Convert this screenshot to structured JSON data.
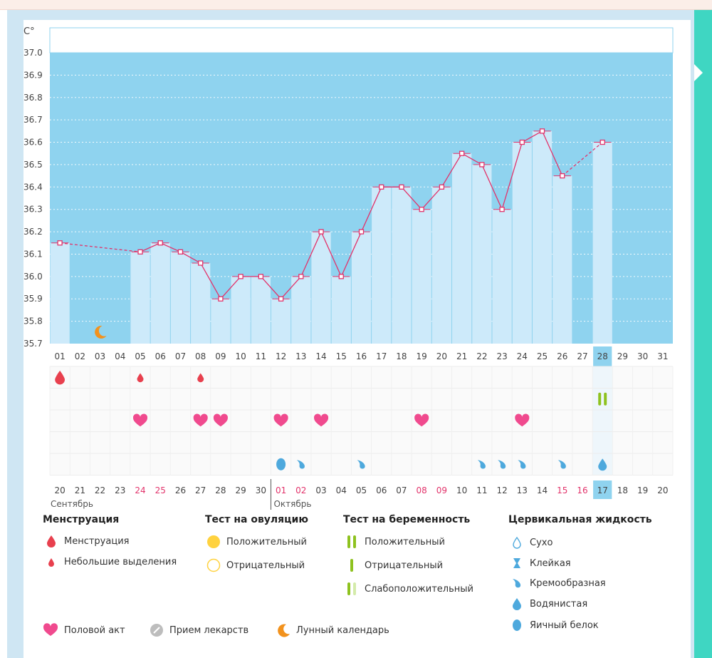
{
  "chart_data": {
    "type": "line",
    "yunit": "C°",
    "yticks": [
      "35.7",
      "35.8",
      "35.9",
      "36.0",
      "36.1",
      "36.2",
      "36.3",
      "36.4",
      "36.5",
      "36.6",
      "36.7",
      "36.8",
      "36.9",
      "37.0"
    ],
    "ylim": [
      35.7,
      37.0
    ],
    "cycle_days": [
      "01",
      "02",
      "03",
      "04",
      "05",
      "06",
      "07",
      "08",
      "09",
      "10",
      "11",
      "12",
      "13",
      "14",
      "15",
      "16",
      "17",
      "18",
      "19",
      "20",
      "21",
      "22",
      "23",
      "24",
      "25",
      "26",
      "27",
      "28",
      "29",
      "30",
      "31"
    ],
    "temperatures": [
      36.15,
      null,
      null,
      null,
      36.11,
      36.15,
      36.11,
      36.06,
      35.9,
      36.0,
      36.0,
      35.9,
      36.0,
      36.2,
      36.0,
      36.2,
      36.4,
      36.4,
      36.3,
      36.4,
      36.55,
      36.5,
      36.3,
      36.6,
      36.65,
      36.45,
      null,
      36.6,
      null,
      null,
      null
    ],
    "current_day": "28",
    "moon_day": "03",
    "calendar_dates": [
      "20",
      "21",
      "22",
      "23",
      "24",
      "25",
      "26",
      "27",
      "28",
      "29",
      "30",
      "01",
      "02",
      "03",
      "04",
      "05",
      "06",
      "07",
      "08",
      "09",
      "10",
      "11",
      "12",
      "13",
      "14",
      "15",
      "16",
      "17",
      "18",
      "19",
      "20"
    ],
    "calendar_red": [
      4,
      5,
      11,
      12,
      18,
      19,
      25,
      26
    ],
    "current_date": "17",
    "month_labels": [
      "Сентябрь",
      "Октябрь"
    ],
    "menstruation": {
      "heavy": [
        "01"
      ],
      "light": [
        "05",
        "08"
      ]
    },
    "pregnancy_positive": [
      "28"
    ],
    "intercourse": [
      "05",
      "08",
      "09",
      "12",
      "14",
      "19",
      "24"
    ],
    "cervical": {
      "creamy": [
        "13",
        "16",
        "22",
        "23",
        "24",
        "26"
      ],
      "egg_white": [
        "12"
      ],
      "watery": [
        "28"
      ]
    }
  },
  "legend": {
    "menstruation": {
      "title": "Менструация",
      "heavy": "Менструация",
      "light": "Небольшие выделения"
    },
    "ovulation": {
      "title": "Тест на овуляцию",
      "positive": "Положительный",
      "negative": "Отрицательный"
    },
    "pregnancy": {
      "title": "Тест на беременность",
      "positive": "Положительный",
      "negative": "Отрицательный",
      "weak": "Слабоположительный"
    },
    "cervical": {
      "title": "Цервикальная жидкость",
      "dry": "Сухо",
      "sticky": "Клейкая",
      "creamy": "Кремообразная",
      "watery": "Водянистая",
      "egg_white": "Яичный белок"
    },
    "intercourse": "Половой акт",
    "medicine": "Прием лекарств",
    "lunar": "Лунный календарь"
  },
  "colors": {
    "sky": "#8fd3ef",
    "bar": "#cdeafa",
    "line": "#e2336b",
    "heart": "#f04a8e",
    "drop": "#e8404e",
    "test": "#8ec21f",
    "cervical": "#4ea9dd",
    "moon": "#f2921d",
    "accent": "#3fd6c2"
  }
}
